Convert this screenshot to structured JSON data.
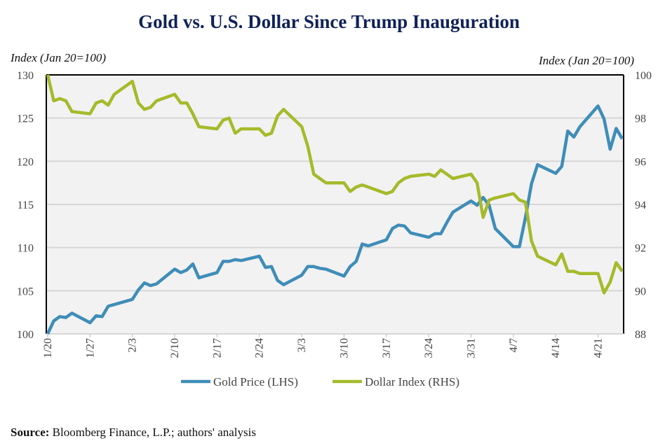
{
  "chart_data": {
    "type": "line",
    "title": "Gold vs. U.S. Dollar Since Trump Inauguration",
    "ylabel_left": "Index (Jan 20=100)",
    "ylabel_right": "Index (Jan 20=100)",
    "ylim_left": [
      100,
      130
    ],
    "ylim_right": [
      88,
      100
    ],
    "yticks_left": [
      100,
      105,
      110,
      115,
      120,
      125,
      130
    ],
    "yticks_right": [
      88,
      90,
      92,
      94,
      96,
      98,
      100
    ],
    "xlim_days": [
      0,
      95
    ],
    "x_unit": "days since 1/20",
    "xticks": [
      {
        "day": 0,
        "label": "1/20"
      },
      {
        "day": 7,
        "label": "1/27"
      },
      {
        "day": 14,
        "label": "2/3"
      },
      {
        "day": 21,
        "label": "2/10"
      },
      {
        "day": 28,
        "label": "2/17"
      },
      {
        "day": 35,
        "label": "2/24"
      },
      {
        "day": 42,
        "label": "3/3"
      },
      {
        "day": 49,
        "label": "3/10"
      },
      {
        "day": 56,
        "label": "3/17"
      },
      {
        "day": 63,
        "label": "3/24"
      },
      {
        "day": 70,
        "label": "3/31"
      },
      {
        "day": 77,
        "label": "4/7"
      },
      {
        "day": 84,
        "label": "4/14"
      },
      {
        "day": 91,
        "label": "4/21"
      }
    ],
    "grid": true,
    "legend_position": "bottom-center",
    "x": [
      0,
      1,
      2,
      3,
      4,
      7,
      8,
      9,
      10,
      11,
      14,
      15,
      16,
      17,
      18,
      21,
      22,
      23,
      24,
      25,
      28,
      29,
      30,
      31,
      32,
      35,
      36,
      37,
      38,
      39,
      42,
      43,
      44,
      45,
      46,
      49,
      50,
      51,
      52,
      53,
      56,
      57,
      58,
      59,
      60,
      63,
      64,
      65,
      66,
      67,
      70,
      71,
      72,
      73,
      74,
      77,
      78,
      79,
      80,
      81,
      84,
      85,
      86,
      87,
      88,
      91,
      92,
      93,
      94,
      95
    ],
    "series": [
      {
        "name": "Gold Price (LHS)",
        "axis": "left",
        "color": "#3f8db8",
        "values": [
          100.0,
          101.5,
          102.0,
          101.9,
          102.4,
          101.3,
          102.1,
          102.0,
          103.2,
          103.4,
          104.0,
          105.1,
          105.9,
          105.6,
          105.8,
          107.5,
          107.1,
          107.4,
          108.1,
          106.5,
          107.1,
          108.4,
          108.4,
          108.6,
          108.5,
          109.0,
          107.7,
          107.8,
          106.2,
          105.7,
          106.8,
          107.8,
          107.8,
          107.6,
          107.5,
          106.7,
          107.8,
          108.4,
          110.4,
          110.2,
          110.9,
          112.2,
          112.6,
          112.5,
          111.7,
          111.2,
          111.6,
          111.6,
          112.9,
          114.1,
          115.4,
          114.9,
          115.8,
          114.9,
          112.2,
          110.1,
          110.1,
          113.5,
          117.4,
          119.6,
          118.6,
          119.4,
          123.5,
          122.8,
          124.0,
          126.4,
          124.9,
          121.4,
          123.8,
          122.6
        ]
      },
      {
        "name": "Dollar Index (RHS)",
        "axis": "right",
        "color": "#a6ba2b",
        "values": [
          100.0,
          98.8,
          98.9,
          98.8,
          98.3,
          98.2,
          98.7,
          98.8,
          98.6,
          99.1,
          99.7,
          98.7,
          98.4,
          98.5,
          98.8,
          99.1,
          98.7,
          98.7,
          98.2,
          97.6,
          97.5,
          97.9,
          98.0,
          97.3,
          97.5,
          97.5,
          97.2,
          97.3,
          98.1,
          98.4,
          97.6,
          96.7,
          95.4,
          95.2,
          95.0,
          95.0,
          94.6,
          94.8,
          94.9,
          94.8,
          94.5,
          94.6,
          95.0,
          95.2,
          95.3,
          95.4,
          95.3,
          95.6,
          95.4,
          95.2,
          95.4,
          95.0,
          93.4,
          94.2,
          94.3,
          94.5,
          94.2,
          94.1,
          92.3,
          91.6,
          91.2,
          91.7,
          90.9,
          90.9,
          90.8,
          90.8,
          89.9,
          90.4,
          91.3,
          90.9
        ]
      }
    ]
  },
  "source": {
    "label": "Source:",
    "text": " Bloomberg Finance, L.P.; authors' analysis"
  }
}
